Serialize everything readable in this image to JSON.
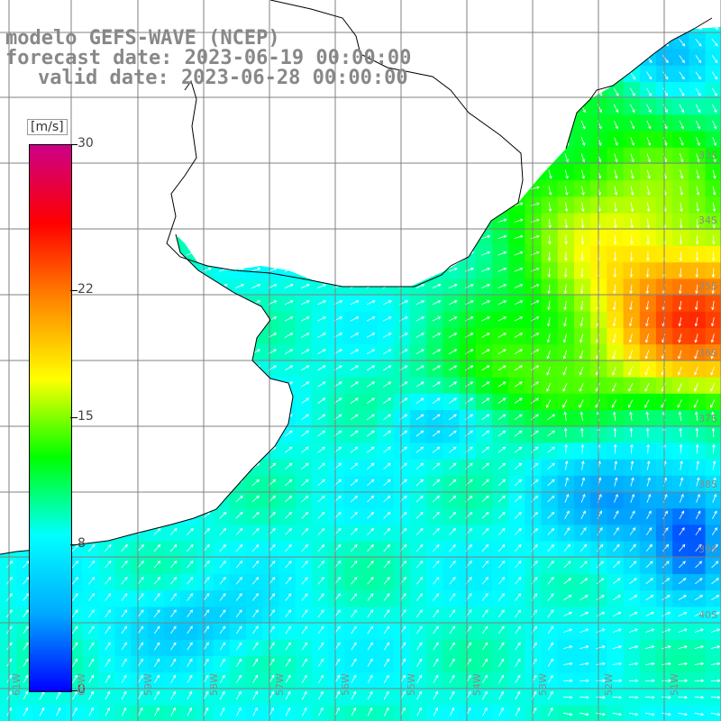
{
  "title": {
    "line1": "modelo GEFS-WAVE (NCEP)",
    "line2": "forecast date: 2023-06-19 00:00:00",
    "line3": "valid date: 2023-06-28 00:00:00"
  },
  "colorbar": {
    "unit": "[m/s]",
    "ticks": [
      "30",
      "22",
      "15",
      "8",
      "0"
    ],
    "tick_values": [
      30,
      22,
      15,
      8,
      0
    ],
    "min": 0,
    "max": 30,
    "colors": [
      "#0000ff",
      "#00aaff",
      "#00ffff",
      "#00ff00",
      "#ffff00",
      "#ff8800",
      "#ff0000",
      "#cc0088"
    ]
  },
  "map": {
    "lat_labels": [
      "33S",
      "34S",
      "35S",
      "36S",
      "37S",
      "38S",
      "39S",
      "40S"
    ],
    "lon_labels": [
      "61W",
      "60W",
      "59W",
      "58W",
      "57W",
      "56W",
      "55W",
      "54W",
      "53W",
      "52W",
      "51W"
    ],
    "land_color": "#ffffff",
    "grid_color": "#808080",
    "coast_color": "#000000"
  }
}
